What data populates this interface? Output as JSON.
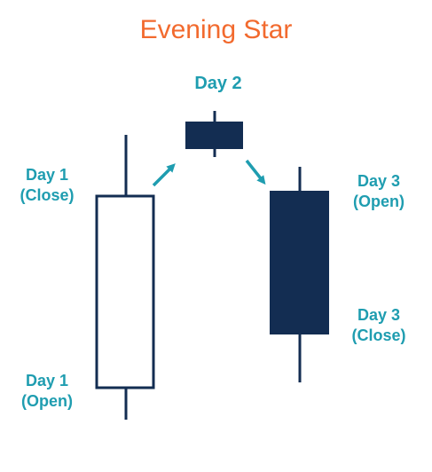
{
  "title": "Evening Star",
  "colors": {
    "title": "#f26a2e",
    "label": "#1f9db0",
    "candle_dark": "#132d52",
    "candle_outline": "#132d52",
    "candle_fill_light": "#ffffff",
    "arrow": "#1f9db0"
  },
  "labels": {
    "day2": "Day 2",
    "day1_close": {
      "line1": "Day 1",
      "line2": "(Close)"
    },
    "day1_open": {
      "line1": "Day 1",
      "line2": "(Open)"
    },
    "day3_open": {
      "line1": "Day 3",
      "line2": "(Open)"
    },
    "day3_close": {
      "line1": "Day 3",
      "line2": "(Close)"
    }
  },
  "candles": [
    {
      "name": "Day 1",
      "kind": "bullish"
    },
    {
      "name": "Day 2",
      "kind": "bearish"
    },
    {
      "name": "Day 3",
      "kind": "bearish"
    }
  ],
  "arrows": [
    {
      "from": "Day 1",
      "to": "Day 2"
    },
    {
      "from": "Day 2",
      "to": "Day 3"
    }
  ]
}
